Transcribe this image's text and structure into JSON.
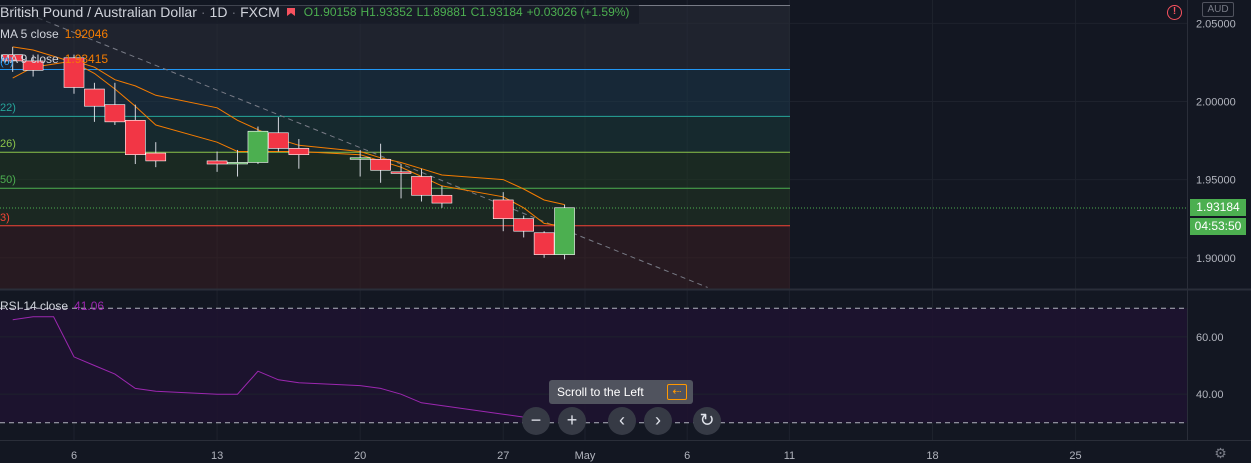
{
  "header": {
    "title": "British Pound / Australian Dollar",
    "interval": "1D",
    "exchange": "FXCM",
    "open": "O1.90158",
    "high": "H1.93352",
    "low": "L1.89881",
    "close": "C1.93184",
    "change": "+0.03026 (+1.59%)"
  },
  "indicators": {
    "ma5": {
      "label": "MA 5 close",
      "value": "1.92046",
      "color": "#f57c00"
    },
    "ma9": {
      "label": "MA 9 close",
      "value": "1.93415",
      "color": "#f57c00"
    },
    "rsi": {
      "label": "RSI 14 close",
      "value": "41.06",
      "color": "#9c27b0"
    }
  },
  "fib_levels": [
    {
      "label": "(0)",
      "price": 2.0205,
      "color": "#2196f3"
    },
    {
      "label": "22)",
      "price": 1.9905,
      "color": "#26a69a"
    },
    {
      "label": "26)",
      "price": 1.9675,
      "color": "#8bc34a"
    },
    {
      "label": "50)",
      "price": 1.9445,
      "color": "#4caf50"
    },
    {
      "label": "3)",
      "price": 1.9205,
      "color": "#f44336"
    }
  ],
  "price_axis": {
    "currency": "AUD",
    "ticks": [
      "2.05000",
      "2.00000",
      "1.95000",
      "1.90000"
    ],
    "tick_values": [
      2.05,
      2.0,
      1.95,
      1.9
    ],
    "last_price": "1.93184",
    "last_price_value": 1.93184,
    "countdown": "04:53:50"
  },
  "rsi_axis": {
    "ticks": [
      "60.00",
      "40.00"
    ],
    "tick_values": [
      60,
      40
    ],
    "upper_band": 70,
    "lower_band": 30
  },
  "time_axis": {
    "labels": [
      {
        "text": "6",
        "day": 6
      },
      {
        "text": "13",
        "day": 13
      },
      {
        "text": "20",
        "day": 20
      },
      {
        "text": "27",
        "day": 27
      },
      {
        "text": "May",
        "day": 31
      },
      {
        "text": "6",
        "day": 36
      },
      {
        "text": "11",
        "day": 41
      },
      {
        "text": "18",
        "day": 48
      },
      {
        "text": "25",
        "day": 55
      }
    ]
  },
  "colors": {
    "up": "#4caf50",
    "down": "#f23645",
    "ma": "#f57c00",
    "rsi": "#9c27b0",
    "background": "#131722"
  },
  "chart_data": {
    "type": "candlestick",
    "series": [
      {
        "day": 3,
        "o": 2.03,
        "h": 2.035,
        "l": 2.019,
        "c": 2.026
      },
      {
        "day": 4,
        "o": 2.026,
        "h": 2.03,
        "l": 2.016,
        "c": 2.02
      },
      {
        "day": 6,
        "o": 2.028,
        "h": 2.03,
        "l": 2.005,
        "c": 2.009
      },
      {
        "day": 7,
        "o": 2.008,
        "h": 2.012,
        "l": 1.987,
        "c": 1.997
      },
      {
        "day": 8,
        "o": 1.998,
        "h": 2.012,
        "l": 1.985,
        "c": 1.987
      },
      {
        "day": 9,
        "o": 1.988,
        "h": 1.998,
        "l": 1.96,
        "c": 1.966
      },
      {
        "day": 10,
        "o": 1.967,
        "h": 1.974,
        "l": 1.958,
        "c": 1.962
      },
      {
        "day": 13,
        "o": 1.962,
        "h": 1.968,
        "l": 1.955,
        "c": 1.96
      },
      {
        "day": 14,
        "o": 1.961,
        "h": 1.969,
        "l": 1.952,
        "c": 1.961
      },
      {
        "day": 15,
        "o": 1.961,
        "h": 1.984,
        "l": 1.96,
        "c": 1.981
      },
      {
        "day": 16,
        "o": 1.98,
        "h": 1.99,
        "l": 1.968,
        "c": 1.97
      },
      {
        "day": 17,
        "o": 1.97,
        "h": 1.976,
        "l": 1.957,
        "c": 1.966
      },
      {
        "day": 20,
        "o": 1.964,
        "h": 1.969,
        "l": 1.952,
        "c": 1.964
      },
      {
        "day": 21,
        "o": 1.963,
        "h": 1.973,
        "l": 1.948,
        "c": 1.956
      },
      {
        "day": 22,
        "o": 1.955,
        "h": 1.96,
        "l": 1.938,
        "c": 1.954
      },
      {
        "day": 23,
        "o": 1.952,
        "h": 1.957,
        "l": 1.936,
        "c": 1.94
      },
      {
        "day": 24,
        "o": 1.94,
        "h": 1.946,
        "l": 1.932,
        "c": 1.935
      },
      {
        "day": 27,
        "o": 1.937,
        "h": 1.942,
        "l": 1.917,
        "c": 1.925
      },
      {
        "day": 28,
        "o": 1.925,
        "h": 1.927,
        "l": 1.913,
        "c": 1.917
      },
      {
        "day": 29,
        "o": 1.916,
        "h": 1.917,
        "l": 1.9,
        "c": 1.902
      },
      {
        "day": 30,
        "o": 1.902,
        "h": 1.934,
        "l": 1.899,
        "c": 1.932
      }
    ],
    "ma5": [
      [
        3,
        2.035
      ],
      [
        4,
        2.033
      ],
      [
        6,
        2.025
      ],
      [
        7,
        2.018
      ],
      [
        8,
        2.008
      ],
      [
        9,
        1.997
      ],
      [
        10,
        1.985
      ],
      [
        13,
        1.974
      ],
      [
        14,
        1.968
      ],
      [
        15,
        1.968
      ],
      [
        16,
        1.968
      ],
      [
        17,
        1.968
      ],
      [
        20,
        1.966
      ],
      [
        21,
        1.962
      ],
      [
        22,
        1.958
      ],
      [
        23,
        1.952
      ],
      [
        24,
        1.946
      ],
      [
        27,
        1.939
      ],
      [
        28,
        1.932
      ],
      [
        29,
        1.922
      ],
      [
        30,
        1.92
      ]
    ],
    "ma9": [
      [
        3,
        2.015
      ],
      [
        4,
        2.022
      ],
      [
        6,
        2.026
      ],
      [
        7,
        2.022
      ],
      [
        8,
        2.014
      ],
      [
        9,
        2.01
      ],
      [
        10,
        2.004
      ],
      [
        13,
        1.996
      ],
      [
        14,
        1.988
      ],
      [
        15,
        1.982
      ],
      [
        16,
        1.976
      ],
      [
        17,
        1.972
      ],
      [
        20,
        1.968
      ],
      [
        21,
        1.964
      ],
      [
        22,
        1.961
      ],
      [
        23,
        1.957
      ],
      [
        24,
        1.953
      ],
      [
        27,
        1.95
      ],
      [
        28,
        1.944
      ],
      [
        29,
        1.937
      ],
      [
        30,
        1.934
      ]
    ],
    "rsi": [
      [
        3,
        66
      ],
      [
        4,
        67
      ],
      [
        5,
        67
      ],
      [
        6,
        53
      ],
      [
        7,
        50
      ],
      [
        8,
        47
      ],
      [
        9,
        42
      ],
      [
        10,
        41
      ],
      [
        13,
        40
      ],
      [
        14,
        40
      ],
      [
        15,
        48
      ],
      [
        16,
        45
      ],
      [
        17,
        44
      ],
      [
        20,
        43
      ],
      [
        21,
        42
      ],
      [
        22,
        40
      ],
      [
        23,
        37
      ],
      [
        24,
        36
      ],
      [
        27,
        33
      ],
      [
        28,
        32
      ],
      [
        29,
        30
      ],
      [
        30,
        41
      ]
    ],
    "trendline": {
      "from": [
        3,
        2.06
      ],
      "to": [
        37,
        1.881
      ]
    },
    "ylim": [
      1.88,
      2.065
    ],
    "rsi_ylim": [
      24,
      76
    ]
  },
  "controls": {
    "tooltip": "Scroll to the Left",
    "tooltip_key": "⇠",
    "zoom_out": "−",
    "zoom_in": "+",
    "scroll_left": "‹",
    "scroll_right": "›",
    "reset": "↻",
    "alert": "!",
    "settings": "⚙"
  }
}
